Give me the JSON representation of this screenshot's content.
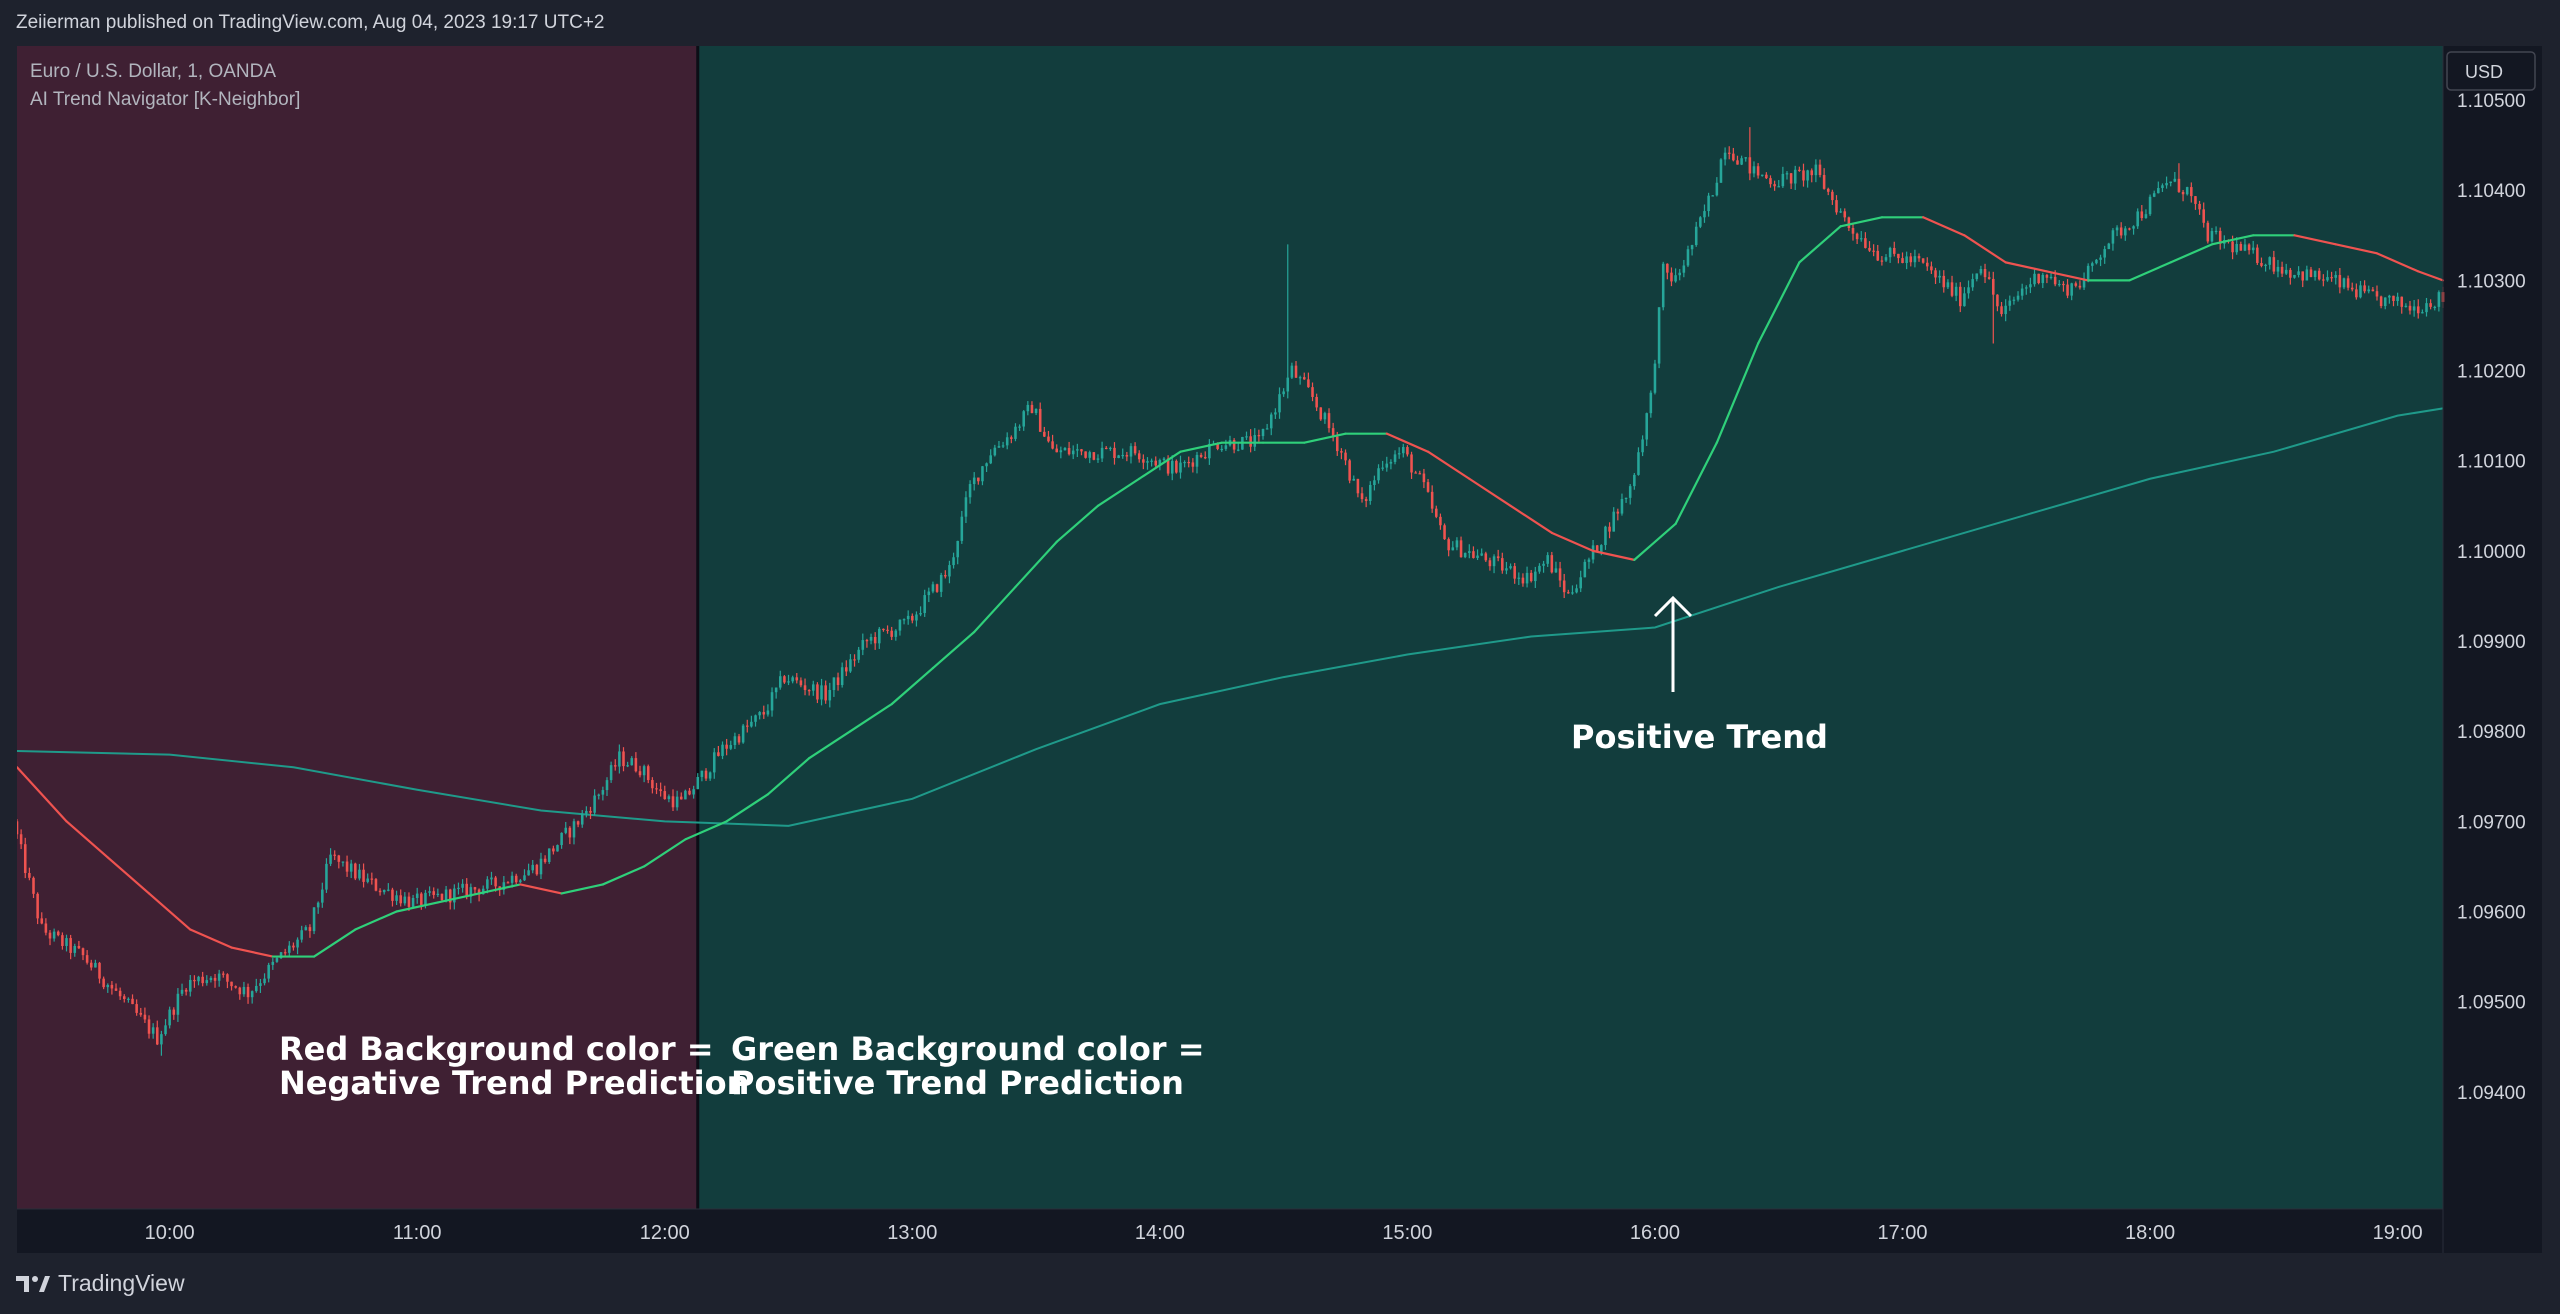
{
  "header": {
    "published": "Zeiierman published on TradingView.com, Aug 04, 2023 19:17 UTC+2"
  },
  "legend": {
    "symbol": "Euro / U.S. Dollar, 1, OANDA",
    "indicator": "AI Trend Navigator [K-Neighbor]"
  },
  "currency_button": "USD",
  "footer": {
    "brand": "TradingView"
  },
  "annotations": {
    "red_line1": "Red Background color =",
    "red_line2": "Negative Trend Prediction",
    "green_line1": "Green Background color =",
    "green_line2": "Positive Trend Prediction",
    "positive_trend": "Positive Trend"
  },
  "colors": {
    "negative_bg": "#3f2033",
    "positive_bg": "#123d3d",
    "up_candle": "#26a69a",
    "down_candle": "#ef5350",
    "knn_up": "#2fd07a",
    "knn_down": "#ef5350",
    "long_ma": "#1f9a8a"
  },
  "chart_data": {
    "type": "candlestick",
    "symbol": "EUR/USD",
    "interval": "1",
    "x_ticks": [
      "10:00",
      "11:00",
      "12:00",
      "13:00",
      "14:00",
      "15:00",
      "16:00",
      "17:00",
      "18:00",
      "19:00"
    ],
    "x_range": [
      "09:23",
      "19:11"
    ],
    "y_ticks": [
      "1.10500",
      "1.10400",
      "1.10300",
      "1.10200",
      "1.10100",
      "1.10000",
      "1.09900",
      "1.09800",
      "1.09700",
      "1.09600",
      "1.09500",
      "1.09400"
    ],
    "ylim": [
      1.0927,
      1.1056
    ],
    "regions": [
      {
        "label": "Negative Trend Prediction",
        "from": "09:23",
        "to": "12:08"
      },
      {
        "label": "Positive Trend Prediction",
        "from": "12:08",
        "to": "19:11"
      }
    ],
    "price_path": [
      [
        "09:23",
        1.097
      ],
      [
        "09:30",
        1.0958
      ],
      [
        "09:40",
        1.0955
      ],
      [
        "09:50",
        1.095
      ],
      [
        "09:58",
        1.0946
      ],
      [
        "10:05",
        1.0952
      ],
      [
        "10:12",
        1.0953
      ],
      [
        "10:20",
        1.0951
      ],
      [
        "10:28",
        1.0955
      ],
      [
        "10:35",
        1.0958
      ],
      [
        "10:40",
        1.0966
      ],
      [
        "10:50",
        1.0963
      ],
      [
        "11:00",
        1.0961
      ],
      [
        "11:10",
        1.0962
      ],
      [
        "11:20",
        1.0963
      ],
      [
        "11:30",
        1.0965
      ],
      [
        "11:40",
        1.097
      ],
      [
        "11:45",
        1.0973
      ],
      [
        "11:50",
        1.0977
      ],
      [
        "11:55",
        1.0976
      ],
      [
        "12:00",
        1.0973
      ],
      [
        "12:05",
        1.0972
      ],
      [
        "12:15",
        1.0978
      ],
      [
        "12:25",
        1.0982
      ],
      [
        "12:30",
        1.0986
      ],
      [
        "12:40",
        1.0984
      ],
      [
        "12:50",
        1.099
      ],
      [
        "13:00",
        1.0992
      ],
      [
        "13:10",
        1.0998
      ],
      [
        "13:15",
        1.1007
      ],
      [
        "13:20",
        1.1011
      ],
      [
        "13:25",
        1.1013
      ],
      [
        "13:30",
        1.1016
      ],
      [
        "13:35",
        1.1011
      ],
      [
        "13:45",
        1.1011
      ],
      [
        "13:55",
        1.1011
      ],
      [
        "14:05",
        1.1009
      ],
      [
        "14:15",
        1.1012
      ],
      [
        "14:25",
        1.1012
      ],
      [
        "14:30",
        1.1017
      ],
      [
        "14:33",
        1.102
      ],
      [
        "14:38",
        1.1017
      ],
      [
        "14:45",
        1.1011
      ],
      [
        "14:50",
        1.1005
      ],
      [
        "14:55",
        1.101
      ],
      [
        "15:00",
        1.1011
      ],
      [
        "15:05",
        1.1007
      ],
      [
        "15:10",
        1.1001
      ],
      [
        "15:20",
        1.0999
      ],
      [
        "15:30",
        1.0997
      ],
      [
        "15:35",
        1.0999
      ],
      [
        "15:40",
        1.0995
      ],
      [
        "15:45",
        1.0999
      ],
      [
        "15:50",
        1.1003
      ],
      [
        "15:55",
        1.1007
      ],
      [
        "16:00",
        1.1017
      ],
      [
        "16:03",
        1.1031
      ],
      [
        "16:06",
        1.103
      ],
      [
        "16:10",
        1.1034
      ],
      [
        "16:15",
        1.104
      ],
      [
        "16:18",
        1.1045
      ],
      [
        "16:25",
        1.1042
      ],
      [
        "16:30",
        1.1041
      ],
      [
        "16:40",
        1.1042
      ],
      [
        "16:48",
        1.1036
      ],
      [
        "16:55",
        1.1033
      ],
      [
        "17:05",
        1.1032
      ],
      [
        "17:10",
        1.103
      ],
      [
        "17:15",
        1.1028
      ],
      [
        "17:20",
        1.1032
      ],
      [
        "17:25",
        1.1026
      ],
      [
        "17:30",
        1.1029
      ],
      [
        "17:35",
        1.1031
      ],
      [
        "17:40",
        1.1029
      ],
      [
        "17:45",
        1.103
      ],
      [
        "17:50",
        1.1034
      ],
      [
        "17:55",
        1.1036
      ],
      [
        "18:00",
        1.1038
      ],
      [
        "18:05",
        1.1041
      ],
      [
        "18:10",
        1.104
      ],
      [
        "18:15",
        1.1035
      ],
      [
        "18:25",
        1.1033
      ],
      [
        "18:35",
        1.1031
      ],
      [
        "18:45",
        1.103
      ],
      [
        "18:55",
        1.1028
      ],
      [
        "19:05",
        1.1027
      ],
      [
        "19:11",
        1.1028
      ]
    ],
    "spikes": [
      {
        "time": "09:58",
        "low": 1.0944
      },
      {
        "time": "14:31",
        "high": 1.1034
      },
      {
        "time": "16:23",
        "high": 1.1047
      },
      {
        "time": "18:07",
        "high": 1.1043
      },
      {
        "time": "17:22",
        "low": 1.1023
      }
    ],
    "series": [
      {
        "name": "KNN MA",
        "values": [
          [
            "09:23",
            1.0976
          ],
          [
            "09:35",
            1.097
          ],
          [
            "09:45",
            1.0966
          ],
          [
            "09:55",
            1.0962
          ],
          [
            "10:05",
            1.0958
          ],
          [
            "10:15",
            1.0956
          ],
          [
            "10:25",
            1.0955
          ],
          [
            "10:35",
            1.0955
          ],
          [
            "10:45",
            1.0958
          ],
          [
            "10:55",
            1.096
          ],
          [
            "11:05",
            1.0961
          ],
          [
            "11:15",
            1.0962
          ],
          [
            "11:25",
            1.0963
          ],
          [
            "11:35",
            1.0962
          ],
          [
            "11:45",
            1.0963
          ],
          [
            "11:55",
            1.0965
          ],
          [
            "12:05",
            1.0968
          ],
          [
            "12:15",
            1.097
          ],
          [
            "12:25",
            1.0973
          ],
          [
            "12:35",
            1.0977
          ],
          [
            "12:45",
            1.098
          ],
          [
            "12:55",
            1.0983
          ],
          [
            "13:05",
            1.0987
          ],
          [
            "13:15",
            1.0991
          ],
          [
            "13:25",
            1.0996
          ],
          [
            "13:35",
            1.1001
          ],
          [
            "13:45",
            1.1005
          ],
          [
            "13:55",
            1.1008
          ],
          [
            "14:05",
            1.1011
          ],
          [
            "14:15",
            1.1012
          ],
          [
            "14:25",
            1.1012
          ],
          [
            "14:35",
            1.1012
          ],
          [
            "14:45",
            1.1013
          ],
          [
            "14:55",
            1.1013
          ],
          [
            "15:05",
            1.1011
          ],
          [
            "15:15",
            1.1008
          ],
          [
            "15:25",
            1.1005
          ],
          [
            "15:35",
            1.1002
          ],
          [
            "15:45",
            1.1
          ],
          [
            "15:55",
            1.0999
          ],
          [
            "16:05",
            1.1003
          ],
          [
            "16:15",
            1.1012
          ],
          [
            "16:25",
            1.1023
          ],
          [
            "16:35",
            1.1032
          ],
          [
            "16:45",
            1.1036
          ],
          [
            "16:55",
            1.1037
          ],
          [
            "17:05",
            1.1037
          ],
          [
            "17:15",
            1.1035
          ],
          [
            "17:25",
            1.1032
          ],
          [
            "17:35",
            1.1031
          ],
          [
            "17:45",
            1.103
          ],
          [
            "17:55",
            1.103
          ],
          [
            "18:05",
            1.1032
          ],
          [
            "18:15",
            1.1034
          ],
          [
            "18:25",
            1.1035
          ],
          [
            "18:35",
            1.1035
          ],
          [
            "18:45",
            1.1034
          ],
          [
            "18:55",
            1.1033
          ],
          [
            "19:05",
            1.1031
          ],
          [
            "19:11",
            1.103
          ]
        ]
      },
      {
        "name": "Long MA",
        "values": [
          [
            "09:23",
            1.09778
          ],
          [
            "10:00",
            1.09774
          ],
          [
            "10:30",
            1.0976
          ],
          [
            "11:00",
            1.09735
          ],
          [
            "11:30",
            1.09712
          ],
          [
            "12:00",
            1.097
          ],
          [
            "12:30",
            1.09695
          ],
          [
            "13:00",
            1.09725
          ],
          [
            "13:30",
            1.0978
          ],
          [
            "14:00",
            1.0983
          ],
          [
            "14:30",
            1.0986
          ],
          [
            "15:00",
            1.09885
          ],
          [
            "15:30",
            1.09905
          ],
          [
            "16:00",
            1.09915
          ],
          [
            "16:30",
            1.0996
          ],
          [
            "17:00",
            1.1
          ],
          [
            "17:30",
            1.1004
          ],
          [
            "18:00",
            1.1008
          ],
          [
            "18:30",
            1.1011
          ],
          [
            "19:00",
            1.1015
          ],
          [
            "19:11",
            1.10158
          ]
        ]
      }
    ],
    "grid": false
  }
}
